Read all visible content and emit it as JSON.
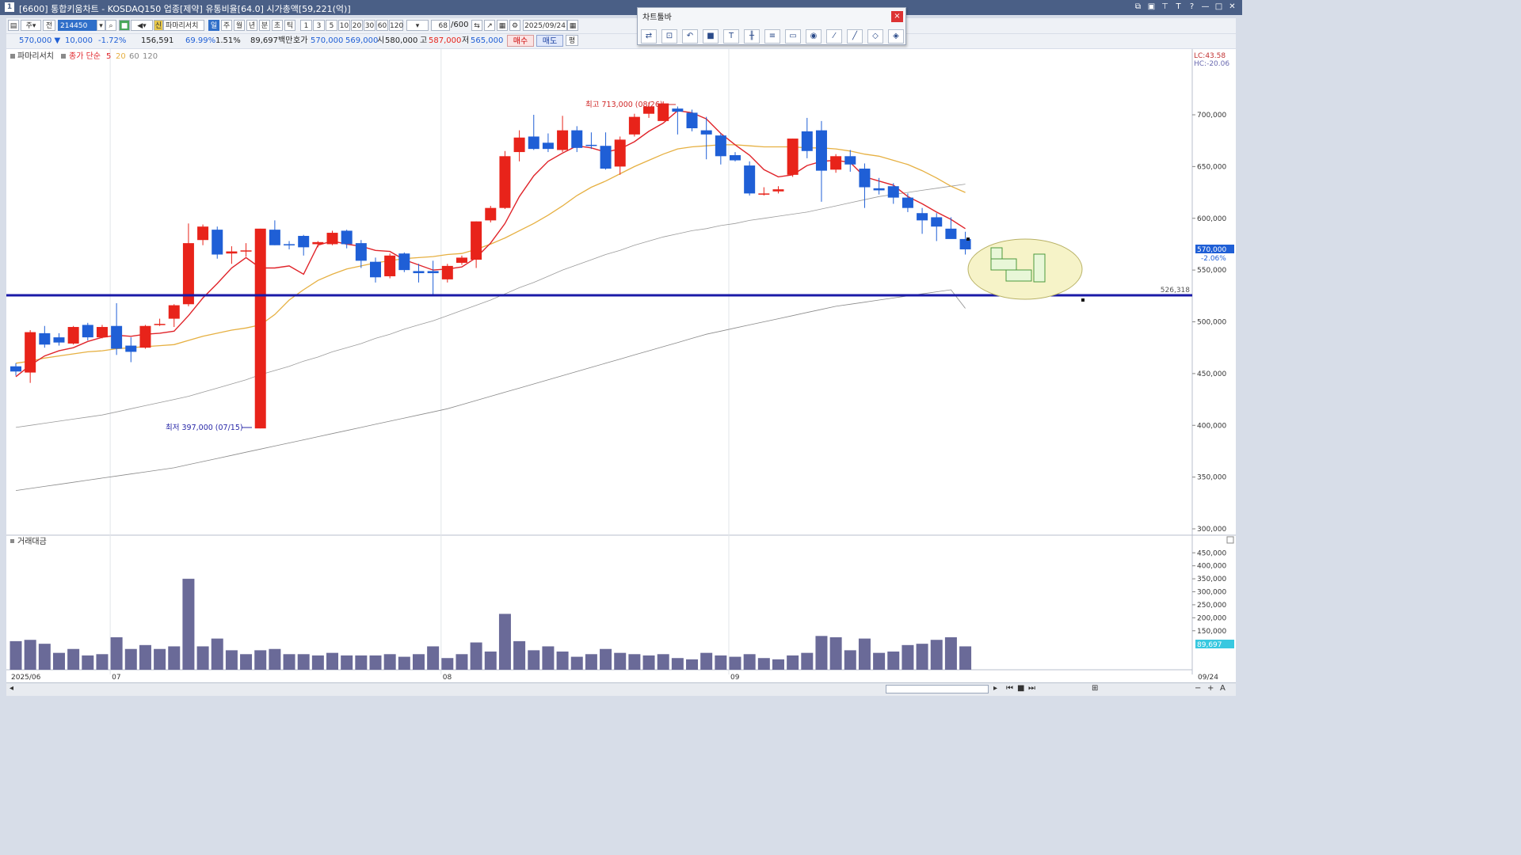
{
  "window": {
    "icon_label": "1",
    "title": "[6600] 통합키움차트 - KOSDAQ150 업종[제약] 유통비율[64.0] 시가총액[59,221(억)]"
  },
  "toolbar": {
    "code": "214450",
    "whole_label": "전",
    "week_label": "주",
    "kind_label": "신",
    "stock_name": "파마리서치",
    "periods": [
      "일",
      "주",
      "월",
      "년",
      "분",
      "초",
      "틱"
    ],
    "ticks": [
      "1",
      "3",
      "5",
      "10",
      "20",
      "30",
      "60",
      "120"
    ],
    "count": "68",
    "count_total": "/600",
    "date": "2025/09/24"
  },
  "quote": {
    "price": "570,000 ▼",
    "change": "10,000",
    "change_pct": "-1.72%",
    "volume": "156,591",
    "turnover_pct": "69.99%",
    "turnover2_pct": "1.51%",
    "amount": "89,697백만",
    "ask_label": "호가",
    "ask": "570,000",
    "bid": "569,000",
    "open_label": "시",
    "open": "580,000",
    "high_label": "고",
    "high": "587,000",
    "low_label": "저",
    "low": "565,000",
    "buy_label": "매수",
    "sell_label": "매도",
    "flat_label": "평"
  },
  "chart_toolbar": {
    "title": "차트툴바",
    "close_label": "×",
    "tools": [
      "reset-icon",
      "zoom-icon",
      "undo-icon",
      "color-icon",
      "text-icon",
      "candle-icon",
      "grid-icon",
      "cut-icon",
      "circle-icon",
      "trendline-icon",
      "line-icon",
      "eraser-icon",
      "erase-all-icon"
    ]
  },
  "legend": {
    "stock": "파마리서치",
    "ma_label": "종가 단순",
    "ma_periods": [
      "5",
      "20",
      "60",
      "120"
    ]
  },
  "annotations": {
    "high": "최고 713,000 (08/26)",
    "low": "최저 397,000 (07/15)",
    "hline_value": "526,318"
  },
  "right_info": {
    "lc": "LC:43.58",
    "hc": "HC:-20.06",
    "last_price": "570,000",
    "last_pct": "-2.06%",
    "vol_last": "89,697"
  },
  "volume_panel": {
    "title": "거래대금"
  },
  "colors": {
    "up": "#e8231a",
    "down": "#1f5fd6",
    "ma5": "#e0242a",
    "ma20": "#e6b042",
    "ma60": "#9a9a9a",
    "ma120": "#8a8a8a",
    "hline": "#1a1aa8",
    "volume": "#6a6a98"
  },
  "chart_data": {
    "type": "candlestick",
    "y_ticks": [
      "700,000",
      "650,000",
      "600,000",
      "550,000",
      "500,000",
      "450,000",
      "400,000",
      "350,000",
      "300,000"
    ],
    "vol_ticks": [
      "450,000",
      "400,000",
      "350,000",
      "300,000",
      "250,000",
      "200,000",
      "150,000"
    ],
    "x_labels": [
      {
        "label": "2025/06",
        "i": 0
      },
      {
        "label": "07",
        "i": 7
      },
      {
        "label": "08",
        "i": 30
      },
      {
        "label": "09",
        "i": 50
      },
      {
        "label": "09/24",
        "i": 68
      }
    ],
    "candles": [
      {
        "o": 457000,
        "h": 460000,
        "l": 448000,
        "c": 452000
      },
      {
        "o": 451000,
        "h": 492000,
        "l": 441000,
        "c": 490000
      },
      {
        "o": 489000,
        "h": 496000,
        "l": 475000,
        "c": 478000
      },
      {
        "o": 485000,
        "h": 489000,
        "l": 477000,
        "c": 480000
      },
      {
        "o": 479000,
        "h": 496000,
        "l": 478000,
        "c": 495000
      },
      {
        "o": 497000,
        "h": 499000,
        "l": 482000,
        "c": 485000
      },
      {
        "o": 485000,
        "h": 497000,
        "l": 484000,
        "c": 495000
      },
      {
        "o": 496000,
        "h": 518000,
        "l": 468000,
        "c": 474000
      },
      {
        "o": 477000,
        "h": 485000,
        "l": 461000,
        "c": 471000
      },
      {
        "o": 475000,
        "h": 497000,
        "l": 474000,
        "c": 496000
      },
      {
        "o": 497000,
        "h": 503000,
        "l": 496000,
        "c": 498000
      },
      {
        "o": 503000,
        "h": 517000,
        "l": 495000,
        "c": 516000
      },
      {
        "o": 517000,
        "h": 595000,
        "l": 515000,
        "c": 576000
      },
      {
        "o": 579000,
        "h": 594000,
        "l": 574000,
        "c": 592000
      },
      {
        "o": 589000,
        "h": 592000,
        "l": 561000,
        "c": 565000
      },
      {
        "o": 566000,
        "h": 573000,
        "l": 556000,
        "c": 568000
      },
      {
        "o": 568000,
        "h": 576000,
        "l": 563000,
        "c": 569000
      },
      {
        "o": 397000,
        "h": 590000,
        "l": 397000,
        "c": 590000
      },
      {
        "o": 589000,
        "h": 598000,
        "l": 574000,
        "c": 574000
      },
      {
        "o": 575000,
        "h": 578000,
        "l": 570000,
        "c": 574000
      },
      {
        "o": 583000,
        "h": 584000,
        "l": 564000,
        "c": 572000
      },
      {
        "o": 575000,
        "h": 578000,
        "l": 572000,
        "c": 577000
      },
      {
        "o": 575000,
        "h": 588000,
        "l": 574000,
        "c": 586000
      },
      {
        "o": 588000,
        "h": 589000,
        "l": 571000,
        "c": 575000
      },
      {
        "o": 576000,
        "h": 579000,
        "l": 552000,
        "c": 559000
      },
      {
        "o": 558000,
        "h": 562000,
        "l": 538000,
        "c": 543000
      },
      {
        "o": 544000,
        "h": 566000,
        "l": 542000,
        "c": 564000
      },
      {
        "o": 566000,
        "h": 567000,
        "l": 548000,
        "c": 550000
      },
      {
        "o": 549000,
        "h": 556000,
        "l": 538000,
        "c": 547000
      },
      {
        "o": 549000,
        "h": 559000,
        "l": 526000,
        "c": 547000
      },
      {
        "o": 541000,
        "h": 556000,
        "l": 538000,
        "c": 554000
      },
      {
        "o": 557000,
        "h": 564000,
        "l": 555000,
        "c": 562000
      },
      {
        "o": 560000,
        "h": 597000,
        "l": 552000,
        "c": 597000
      },
      {
        "o": 598000,
        "h": 612000,
        "l": 596000,
        "c": 610000
      },
      {
        "o": 610000,
        "h": 665000,
        "l": 609000,
        "c": 660000
      },
      {
        "o": 664000,
        "h": 685000,
        "l": 655000,
        "c": 678000
      },
      {
        "o": 679000,
        "h": 700000,
        "l": 666000,
        "c": 667000
      },
      {
        "o": 673000,
        "h": 682000,
        "l": 664000,
        "c": 667000
      },
      {
        "o": 666000,
        "h": 699000,
        "l": 664000,
        "c": 685000
      },
      {
        "o": 685000,
        "h": 689000,
        "l": 664000,
        "c": 668000
      },
      {
        "o": 671000,
        "h": 683000,
        "l": 667000,
        "c": 670000
      },
      {
        "o": 670000,
        "h": 683000,
        "l": 647000,
        "c": 648000
      },
      {
        "o": 650000,
        "h": 679000,
        "l": 642000,
        "c": 676000
      },
      {
        "o": 681000,
        "h": 701000,
        "l": 679000,
        "c": 698000
      },
      {
        "o": 701000,
        "h": 712000,
        "l": 697000,
        "c": 708000
      },
      {
        "o": 694000,
        "h": 713000,
        "l": 694000,
        "c": 711000
      },
      {
        "o": 706000,
        "h": 708000,
        "l": 681000,
        "c": 703000
      },
      {
        "o": 702000,
        "h": 705000,
        "l": 684000,
        "c": 687000
      },
      {
        "o": 685000,
        "h": 698000,
        "l": 657000,
        "c": 681000
      },
      {
        "o": 680000,
        "h": 682000,
        "l": 652000,
        "c": 660000
      },
      {
        "o": 661000,
        "h": 664000,
        "l": 655000,
        "c": 656000
      },
      {
        "o": 651000,
        "h": 655000,
        "l": 622000,
        "c": 624000
      },
      {
        "o": 624000,
        "h": 630000,
        "l": 622000,
        "c": 624000
      },
      {
        "o": 626000,
        "h": 631000,
        "l": 624000,
        "c": 628000
      },
      {
        "o": 642000,
        "h": 677000,
        "l": 640000,
        "c": 677000
      },
      {
        "o": 684000,
        "h": 697000,
        "l": 658000,
        "c": 665000
      },
      {
        "o": 685000,
        "h": 694000,
        "l": 616000,
        "c": 646000
      },
      {
        "o": 647000,
        "h": 662000,
        "l": 644000,
        "c": 660000
      },
      {
        "o": 660000,
        "h": 666000,
        "l": 645000,
        "c": 652000
      },
      {
        "o": 648000,
        "h": 653000,
        "l": 610000,
        "c": 630000
      },
      {
        "o": 629000,
        "h": 639000,
        "l": 623000,
        "c": 627000
      },
      {
        "o": 631000,
        "h": 634000,
        "l": 614000,
        "c": 620000
      },
      {
        "o": 620000,
        "h": 624000,
        "l": 606000,
        "c": 610000
      },
      {
        "o": 605000,
        "h": 610000,
        "l": 585000,
        "c": 598000
      },
      {
        "o": 601000,
        "h": 605000,
        "l": 578000,
        "c": 592000
      },
      {
        "o": 590000,
        "h": 601000,
        "l": 583000,
        "c": 580000
      },
      {
        "o": 580000,
        "h": 587000,
        "l": 565000,
        "c": 570000
      }
    ],
    "ma5": [
      447000,
      458000,
      467000,
      472000,
      475000,
      481000,
      485000,
      487000,
      486000,
      488000,
      489000,
      491000,
      506000,
      523000,
      537000,
      552000,
      562000,
      552000,
      552000,
      554000,
      546000,
      574000,
      578000,
      575000,
      573000,
      569000,
      568000,
      560000,
      555000,
      550000,
      551000,
      553000,
      562000,
      576000,
      595000,
      621000,
      641000,
      655000,
      663000,
      670000,
      668000,
      664000,
      667000,
      674000,
      684000,
      692000,
      704000,
      702000,
      696000,
      682000,
      671000,
      661000,
      647000,
      640000,
      642000,
      651000,
      655000,
      656000,
      654000,
      640000,
      636000,
      632000,
      621000,
      614000,
      606000,
      599000,
      590000
    ],
    "ma20": [
      460000,
      462000,
      465000,
      467000,
      469000,
      471000,
      472000,
      474000,
      475000,
      476000,
      477000,
      478000,
      482000,
      486000,
      489000,
      492000,
      494000,
      497000,
      507000,
      521000,
      531000,
      540000,
      546000,
      551000,
      554000,
      557000,
      559000,
      561000,
      562000,
      563000,
      565000,
      566000,
      570000,
      575000,
      581000,
      588000,
      595000,
      603000,
      612000,
      622000,
      630000,
      636000,
      643000,
      650000,
      656000,
      662000,
      667000,
      669000,
      670000,
      671000,
      671000,
      670000,
      669000,
      669000,
      669000,
      668000,
      668000,
      667000,
      665000,
      662000,
      660000,
      656000,
      652000,
      646000,
      639000,
      631000,
      625000
    ],
    "ma60": [
      398000,
      400000,
      402000,
      404000,
      406000,
      408000,
      410000,
      413000,
      416000,
      419000,
      422000,
      425000,
      428000,
      432000,
      436000,
      440000,
      444000,
      449000,
      453000,
      457000,
      462000,
      466000,
      471000,
      475000,
      479000,
      484000,
      488000,
      493000,
      497000,
      501000,
      506000,
      511000,
      516000,
      521000,
      527000,
      533000,
      538000,
      544000,
      550000,
      555000,
      560000,
      565000,
      569000,
      574000,
      578000,
      582000,
      585000,
      588000,
      590000,
      593000,
      595000,
      598000,
      600000,
      602000,
      604000,
      606000,
      609000,
      612000,
      615000,
      618000,
      621000,
      623000,
      625000,
      627000,
      629000,
      631000,
      633000
    ],
    "ma120": [
      337000,
      339000,
      341000,
      343000,
      345000,
      347000,
      349000,
      351000,
      353000,
      355000,
      357000,
      359000,
      362000,
      365000,
      368000,
      371000,
      374000,
      377000,
      380000,
      383000,
      386000,
      389000,
      392000,
      395000,
      398000,
      401000,
      404000,
      407000,
      410000,
      413000,
      416000,
      420000,
      424000,
      428000,
      432000,
      436000,
      440000,
      444000,
      448000,
      452000,
      456000,
      460000,
      464000,
      468000,
      472000,
      476000,
      480000,
      484000,
      488000,
      491000,
      494000,
      497000,
      500000,
      503000,
      506000,
      509000,
      512000,
      515000,
      517000,
      519000,
      521000,
      523000,
      525000,
      527000,
      529000,
      531000,
      513000
    ],
    "volume": [
      110000,
      115000,
      100000,
      65000,
      80000,
      55000,
      60000,
      125000,
      80000,
      95000,
      80000,
      90000,
      350000,
      90000,
      120000,
      75000,
      60000,
      75000,
      80000,
      60000,
      60000,
      55000,
      65000,
      55000,
      55000,
      55000,
      60000,
      50000,
      60000,
      90000,
      45000,
      60000,
      105000,
      70000,
      215000,
      110000,
      75000,
      90000,
      70000,
      50000,
      60000,
      80000,
      65000,
      60000,
      55000,
      60000,
      45000,
      40000,
      65000,
      55000,
      50000,
      60000,
      45000,
      40000,
      55000,
      65000,
      130000,
      125000,
      75000,
      120000,
      65000,
      70000,
      95000,
      100000,
      115000,
      125000,
      90000
    ]
  }
}
